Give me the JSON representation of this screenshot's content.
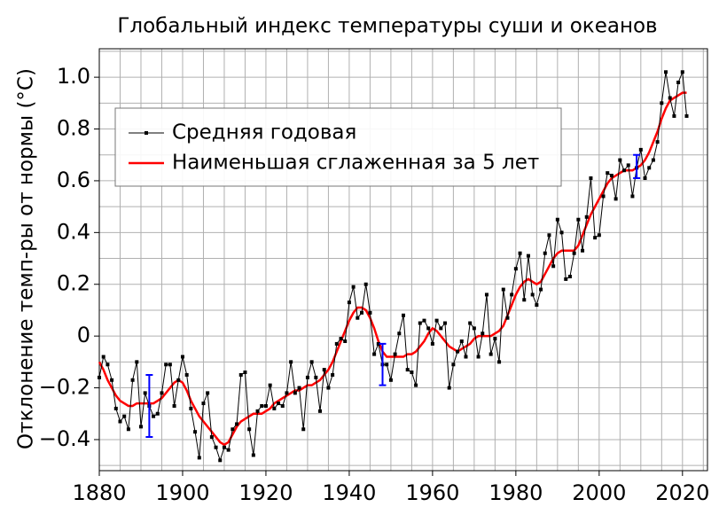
{
  "chart_data": {
    "type": "line",
    "title": "Глобальный индекс температуры суши и океанов",
    "ylabel": "Отклонение темп-ры от нормы (°C)",
    "x": [
      1880,
      1881,
      1882,
      1883,
      1884,
      1885,
      1886,
      1887,
      1888,
      1889,
      1890,
      1891,
      1892,
      1893,
      1894,
      1895,
      1896,
      1897,
      1898,
      1899,
      1900,
      1901,
      1902,
      1903,
      1904,
      1905,
      1906,
      1907,
      1908,
      1909,
      1910,
      1911,
      1912,
      1913,
      1914,
      1915,
      1916,
      1917,
      1918,
      1919,
      1920,
      1921,
      1922,
      1923,
      1924,
      1925,
      1926,
      1927,
      1928,
      1929,
      1930,
      1931,
      1932,
      1933,
      1934,
      1935,
      1936,
      1937,
      1938,
      1939,
      1940,
      1941,
      1942,
      1943,
      1944,
      1945,
      1946,
      1947,
      1948,
      1949,
      1950,
      1951,
      1952,
      1953,
      1954,
      1955,
      1956,
      1957,
      1958,
      1959,
      1960,
      1961,
      1962,
      1963,
      1964,
      1965,
      1966,
      1967,
      1968,
      1969,
      1970,
      1971,
      1972,
      1973,
      1974,
      1975,
      1976,
      1977,
      1978,
      1979,
      1980,
      1981,
      1982,
      1983,
      1984,
      1985,
      1986,
      1987,
      1988,
      1989,
      1990,
      1991,
      1992,
      1993,
      1994,
      1995,
      1996,
      1997,
      1998,
      1999,
      2000,
      2001,
      2002,
      2003,
      2004,
      2005,
      2006,
      2007,
      2008,
      2009,
      2010,
      2011,
      2012,
      2013,
      2014,
      2015,
      2016,
      2017,
      2018,
      2019,
      2020,
      2021
    ],
    "series": [
      {
        "name": "Средняя годовая",
        "color": "#000000",
        "markers": true,
        "values": [
          -0.16,
          -0.08,
          -0.11,
          -0.17,
          -0.28,
          -0.33,
          -0.31,
          -0.36,
          -0.17,
          -0.1,
          -0.35,
          -0.22,
          -0.27,
          -0.31,
          -0.3,
          -0.22,
          -0.11,
          -0.11,
          -0.27,
          -0.17,
          -0.08,
          -0.15,
          -0.28,
          -0.37,
          -0.47,
          -0.26,
          -0.22,
          -0.39,
          -0.43,
          -0.48,
          -0.43,
          -0.44,
          -0.36,
          -0.34,
          -0.15,
          -0.14,
          -0.36,
          -0.46,
          -0.29,
          -0.27,
          -0.27,
          -0.19,
          -0.28,
          -0.26,
          -0.27,
          -0.22,
          -0.1,
          -0.22,
          -0.2,
          -0.36,
          -0.16,
          -0.1,
          -0.16,
          -0.29,
          -0.13,
          -0.2,
          -0.15,
          -0.03,
          -0.01,
          -0.02,
          0.13,
          0.19,
          0.07,
          0.09,
          0.2,
          0.09,
          -0.07,
          -0.03,
          -0.11,
          -0.11,
          -0.17,
          -0.07,
          0.01,
          0.08,
          -0.13,
          -0.14,
          -0.19,
          0.05,
          0.06,
          0.03,
          -0.03,
          0.06,
          0.03,
          0.05,
          -0.2,
          -0.11,
          -0.06,
          -0.02,
          -0.08,
          0.05,
          0.03,
          -0.08,
          0.01,
          0.16,
          -0.07,
          -0.01,
          -0.1,
          0.18,
          0.07,
          0.16,
          0.26,
          0.32,
          0.14,
          0.31,
          0.16,
          0.12,
          0.18,
          0.32,
          0.39,
          0.27,
          0.45,
          0.4,
          0.22,
          0.23,
          0.32,
          0.45,
          0.33,
          0.46,
          0.61,
          0.38,
          0.39,
          0.54,
          0.63,
          0.62,
          0.53,
          0.68,
          0.64,
          0.66,
          0.54,
          0.65,
          0.72,
          0.61,
          0.65,
          0.68,
          0.75,
          0.9,
          1.02,
          0.92,
          0.85,
          0.98,
          1.02,
          0.85
        ]
      },
      {
        "name": "Наименьшая сглаженная за 5 лет",
        "color": "#ff0000",
        "markers": false,
        "values": [
          -0.1,
          -0.13,
          -0.17,
          -0.2,
          -0.23,
          -0.25,
          -0.26,
          -0.27,
          -0.27,
          -0.26,
          -0.26,
          -0.26,
          -0.26,
          -0.26,
          -0.25,
          -0.24,
          -0.22,
          -0.2,
          -0.18,
          -0.17,
          -0.18,
          -0.21,
          -0.25,
          -0.28,
          -0.31,
          -0.33,
          -0.35,
          -0.37,
          -0.39,
          -0.41,
          -0.42,
          -0.41,
          -0.38,
          -0.35,
          -0.33,
          -0.32,
          -0.31,
          -0.3,
          -0.3,
          -0.3,
          -0.29,
          -0.28,
          -0.26,
          -0.25,
          -0.24,
          -0.23,
          -0.22,
          -0.21,
          -0.21,
          -0.2,
          -0.19,
          -0.19,
          -0.18,
          -0.17,
          -0.15,
          -0.13,
          -0.1,
          -0.06,
          -0.02,
          0.02,
          0.06,
          0.09,
          0.11,
          0.11,
          0.1,
          0.07,
          0.03,
          -0.02,
          -0.06,
          -0.08,
          -0.08,
          -0.08,
          -0.08,
          -0.08,
          -0.07,
          -0.07,
          -0.06,
          -0.04,
          -0.02,
          0.01,
          0.03,
          0.02,
          0.0,
          -0.02,
          -0.04,
          -0.05,
          -0.06,
          -0.05,
          -0.04,
          -0.03,
          -0.01,
          0.0,
          0.0,
          0.0,
          0.0,
          0.01,
          0.02,
          0.04,
          0.08,
          0.12,
          0.16,
          0.19,
          0.21,
          0.22,
          0.21,
          0.2,
          0.21,
          0.24,
          0.27,
          0.3,
          0.32,
          0.33,
          0.33,
          0.33,
          0.33,
          0.35,
          0.39,
          0.43,
          0.47,
          0.5,
          0.53,
          0.56,
          0.59,
          0.61,
          0.62,
          0.63,
          0.64,
          0.64,
          0.64,
          0.65,
          0.66,
          0.68,
          0.71,
          0.75,
          0.79,
          0.84,
          0.88,
          0.91,
          0.92,
          0.93,
          0.94,
          0.94
        ]
      }
    ],
    "error_bars": {
      "color": "#0000ff",
      "x": [
        1892,
        1948,
        2009
      ],
      "y": [
        -0.27,
        -0.11,
        0.655
      ],
      "err": [
        0.12,
        0.08,
        0.045
      ]
    },
    "xlim": [
      1880,
      2026
    ],
    "ylim": [
      -0.52,
      1.11
    ],
    "xticks": [
      1880,
      1900,
      1920,
      1940,
      1960,
      1980,
      2000,
      2020
    ],
    "yticks": [
      {
        "value": -0.4,
        "label": "−0.4"
      },
      {
        "value": -0.2,
        "label": "−0.2"
      },
      0,
      0.2,
      0.4,
      0.6,
      0.8,
      {
        "value": 1.0,
        "label": "1.0"
      }
    ],
    "xgrid": [
      1880,
      1885,
      1890,
      1895,
      1900,
      1905,
      1910,
      1915,
      1920,
      1925,
      1930,
      1935,
      1940,
      1945,
      1950,
      1955,
      1960,
      1965,
      1970,
      1975,
      1980,
      1985,
      1990,
      1995,
      2000,
      2005,
      2010,
      2015,
      2020,
      2025
    ],
    "ygrid": [
      -0.5,
      -0.4,
      -0.3,
      -0.2,
      -0.1,
      0,
      0.1,
      0.2,
      0.3,
      0.4,
      0.5,
      0.6,
      0.7,
      0.8,
      0.9,
      1.0,
      1.1
    ],
    "grid": true,
    "legend": "upper left"
  }
}
